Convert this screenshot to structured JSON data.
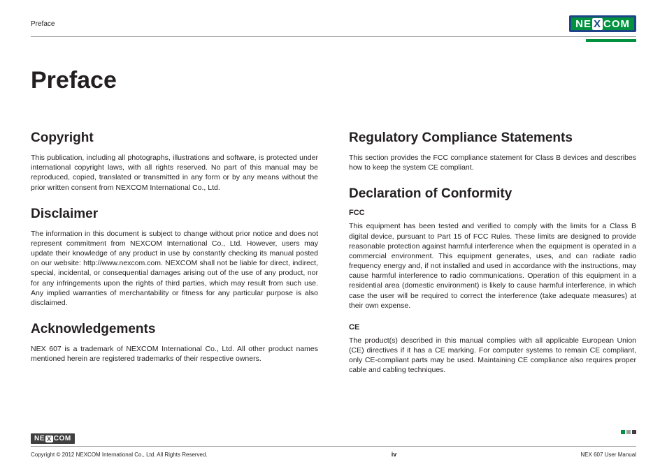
{
  "colors": {
    "brand_green": "#00923f",
    "brand_blue": "#1c4486",
    "rule_grey": "#9c9e9f",
    "text": "#231f20",
    "footer_logo_bg": "#404041",
    "background": "#ffffff"
  },
  "header": {
    "section_label": "Preface",
    "logo_text_parts": [
      "NE",
      "X",
      "COM"
    ]
  },
  "page_title": "Preface",
  "left_column": {
    "copyright": {
      "heading": "Copyright",
      "body": "This publication, including all photographs, illustrations and software, is protected under international copyright laws, with all rights reserved. No part of this manual may be reproduced, copied, translated or transmitted in any form or by any means without the prior written consent from NEXCOM International Co., Ltd."
    },
    "disclaimer": {
      "heading": "Disclaimer",
      "body": "The information in this document is subject to change without prior notice and does not represent commitment from NEXCOM International Co., Ltd. However, users may update their knowledge of any product in use by constantly checking its manual posted on our website: http://www.nexcom.com. NEXCOM shall not be liable for direct, indirect, special, incidental, or consequential damages arising out of the use of any product, nor for any infringements upon the rights of third parties, which may result from such use. Any implied warranties of merchantability or fitness for any particular purpose is also disclaimed."
    },
    "acknowledgements": {
      "heading": "Acknowledgements",
      "body": "NEX 607 is a trademark of NEXCOM International Co., Ltd. All other product names mentioned herein are registered trademarks of their respective owners."
    }
  },
  "right_column": {
    "regulatory": {
      "heading": "Regulatory Compliance Statements",
      "body": "This section provides the FCC compliance statement for Class B devices and describes how to keep the system CE compliant."
    },
    "declaration": {
      "heading": "Declaration of Conformity",
      "fcc_label": "FCC",
      "fcc_body": "This equipment has been tested and verified to comply with the limits for a Class B digital device, pursuant to Part 15 of FCC Rules. These limits are designed to provide reasonable protection against harmful interference when the equipment is operated in a commercial environment. This equipment generates, uses, and can radiate radio frequency energy and, if not installed and used in accordance with the instructions, may cause harmful interference to radio communications. Operation of this equipment in a residential area (domestic environment) is likely to cause harmful interference, in which case the user will be required to correct the interference (take adequate measures) at their own expense.",
      "ce_label": "CE",
      "ce_body": "The product(s) described in this manual complies with all applicable European Union (CE) directives if it has a CE marking. For computer systems to remain CE compliant, only CE-compliant parts may be used. Maintaining CE compliance also requires proper cable and cabling techniques."
    }
  },
  "footer": {
    "copyright_line": "Copyright © 2012 NEXCOM International Co., Ltd. All Rights Reserved.",
    "page_number": "iv",
    "doc_label": "NEX 607 User Manual",
    "logo_text_parts": [
      "NE",
      "X",
      "COM"
    ]
  }
}
